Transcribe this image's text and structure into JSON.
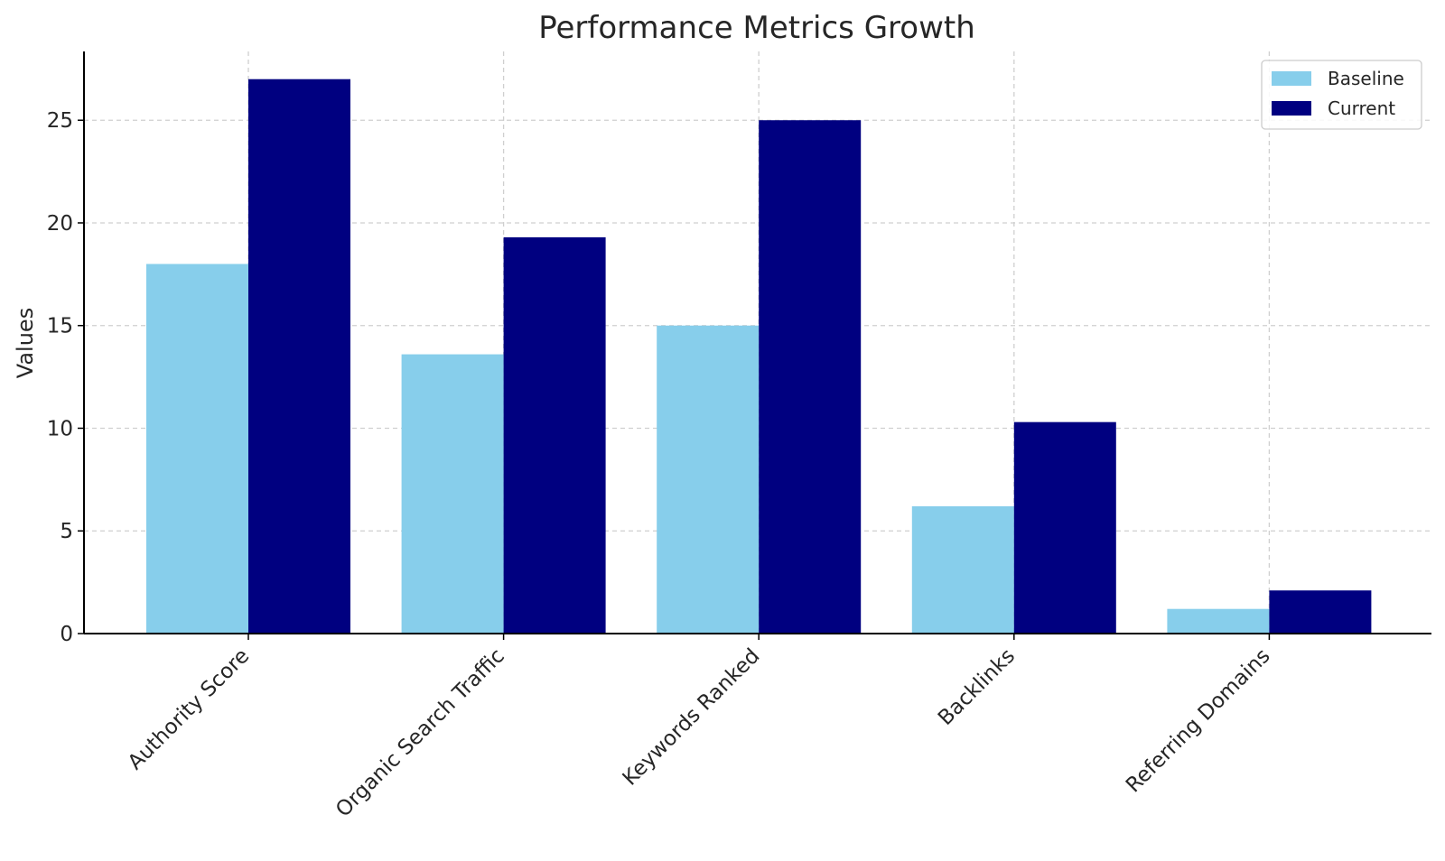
{
  "chart_data": {
    "type": "bar",
    "title": "Performance Metrics Growth",
    "xlabel": "",
    "ylabel": "Values",
    "categories": [
      "Authority Score",
      "Organic Search Traffic",
      "Keywords Ranked",
      "Backlinks",
      "Referring Domains"
    ],
    "series": [
      {
        "name": "Baseline",
        "color": "#87ceeb",
        "values": [
          18,
          13.6,
          15,
          6.2,
          1.2
        ]
      },
      {
        "name": "Current",
        "color": "#000080",
        "values": [
          27,
          19.3,
          25,
          10.3,
          2.1
        ]
      }
    ],
    "ylim": [
      0,
      28.35
    ],
    "yticks": [
      "0",
      "5",
      "10",
      "15",
      "20",
      "25"
    ],
    "grid": true,
    "legend_position": "top-right"
  }
}
